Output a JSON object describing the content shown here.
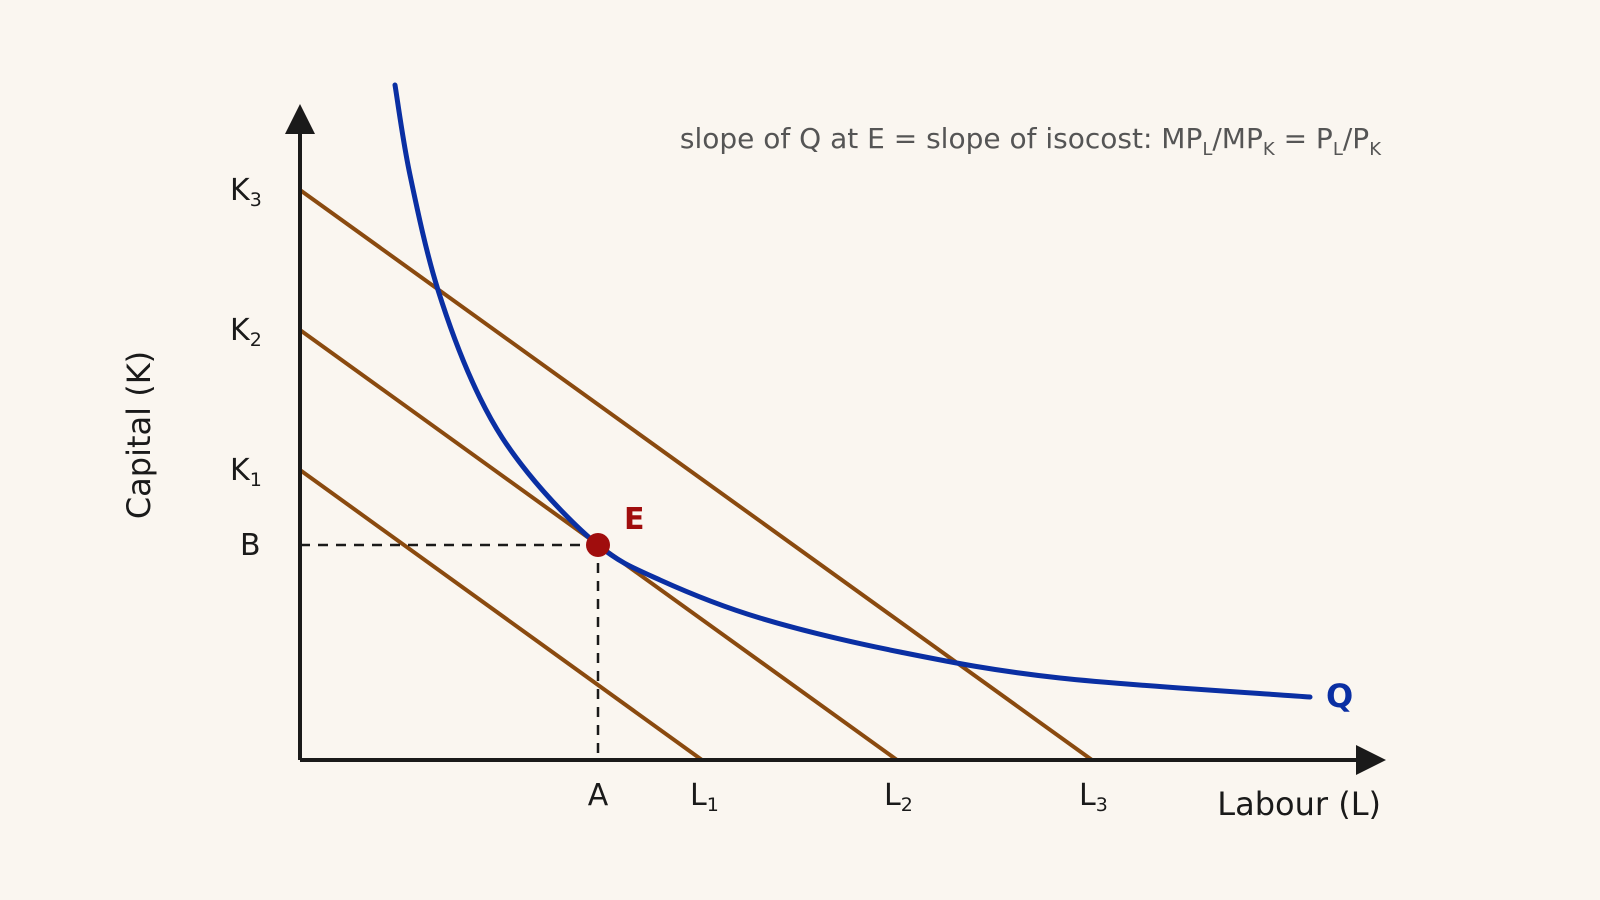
{
  "diagram": {
    "x_axis_label": "Labour (L)",
    "y_axis_label": "Capital (K)",
    "annotation": {
      "t1": "slope of Q at E = slope of isocost: MP",
      "s1": "L",
      "t2": "/MP",
      "s2": "K",
      "t3": " = P",
      "s3": "L",
      "t4": "/P",
      "s4": "K"
    },
    "x_ticks": {
      "a": "A",
      "l1": "L",
      "l1_sub": "1",
      "l2": "L",
      "l2_sub": "2",
      "l3": "L",
      "l3_sub": "3"
    },
    "y_ticks": {
      "k3": "K",
      "k3_sub": "3",
      "k2": "K",
      "k2_sub": "2",
      "k1": "K",
      "k1_sub": "1",
      "b": "B"
    },
    "curve_label": "Q",
    "point_label": "E",
    "colors": {
      "isoquant": "#0a2fa3",
      "isocost": "#8a4a0f",
      "equilibrium": "#a00d0d",
      "axis": "#1a1a1a",
      "background": "#faf6f0"
    }
  }
}
